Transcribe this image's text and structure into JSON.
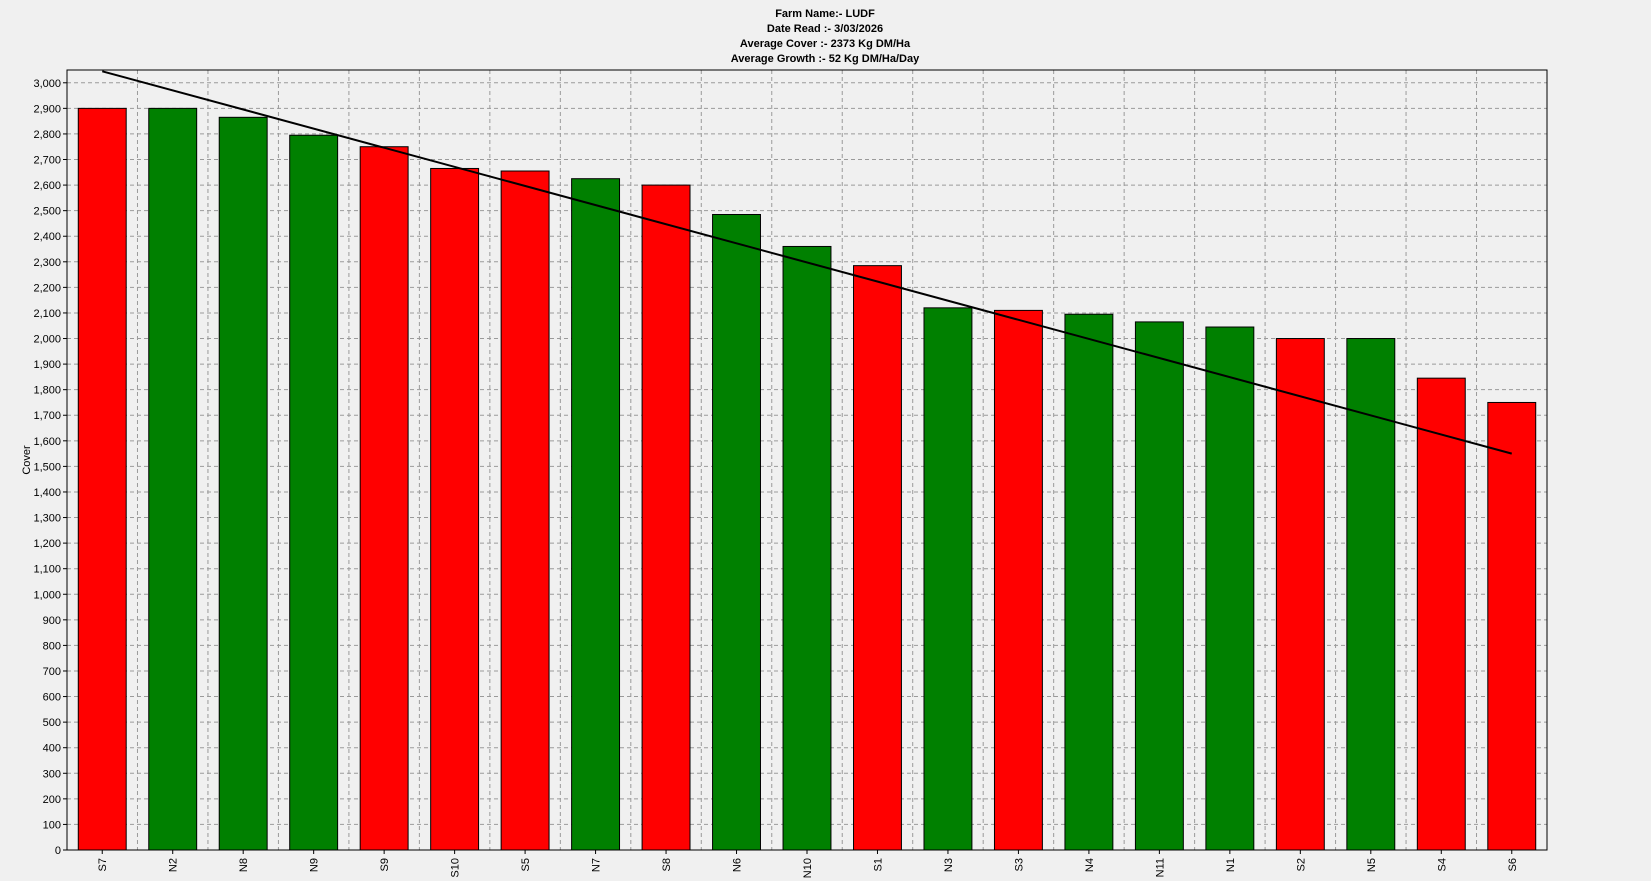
{
  "chart_data": {
    "type": "bar",
    "title_lines": [
      "Farm Name:- LUDF",
      "Date Read :-  3/03/2026",
      "Average Cover :-  2373 Kg DM/Ha",
      "Average Growth :-  52 Kg DM/Ha/Day"
    ],
    "ylabel": "Cover",
    "xlabel": "",
    "ylim": [
      0,
      3050
    ],
    "ytick_step": 100,
    "grid": true,
    "categories": [
      "S7",
      "N2",
      "N8",
      "N9",
      "S9",
      "S10",
      "S5",
      "N7",
      "S8",
      "N6",
      "N10",
      "S1",
      "N3",
      "S3",
      "N4",
      "N11",
      "N1",
      "S2",
      "N5",
      "S4",
      "S6"
    ],
    "values": [
      2900,
      2900,
      2865,
      2795,
      2750,
      2665,
      2655,
      2625,
      2600,
      2485,
      2360,
      2285,
      2120,
      2110,
      2095,
      2065,
      2045,
      2000,
      2000,
      1845,
      1750
    ],
    "bar_colors": [
      "#ff0000",
      "#008000",
      "#008000",
      "#008000",
      "#ff0000",
      "#ff0000",
      "#ff0000",
      "#008000",
      "#ff0000",
      "#008000",
      "#008000",
      "#ff0000",
      "#008000",
      "#ff0000",
      "#008000",
      "#008000",
      "#008000",
      "#ff0000",
      "#008000",
      "#ff0000",
      "#ff0000"
    ],
    "trend_line": {
      "start_value": 3045,
      "end_value": 1550
    },
    "colors": {
      "background": "#f0f0f0",
      "grid": "#9a9a9a",
      "bar_edge": "#000000",
      "trend": "#000000"
    }
  }
}
